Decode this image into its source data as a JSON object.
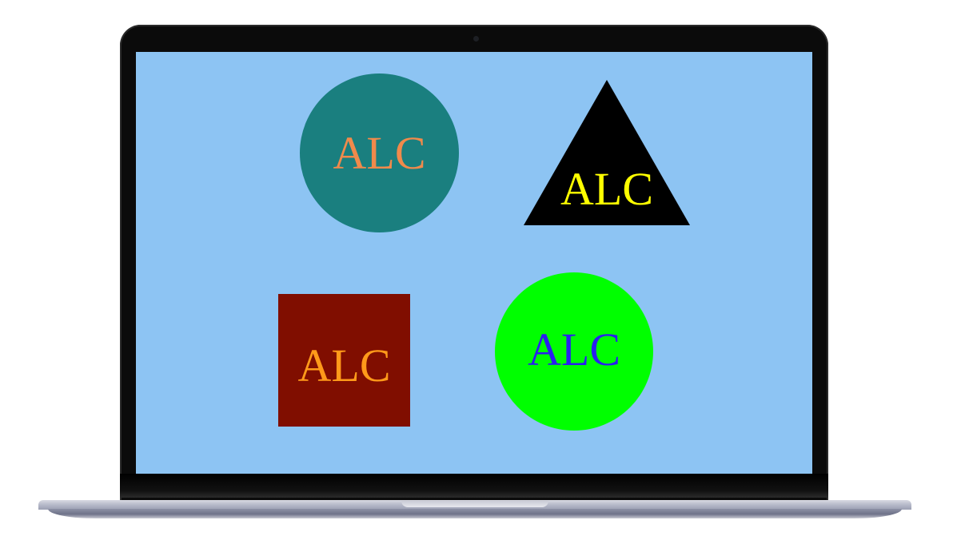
{
  "screen": {
    "background": "#8dc4f3",
    "shapes": {
      "teal_circle": {
        "label": "ALC",
        "fill": "#1a7f7f",
        "text_color": "#f08a4b",
        "shape": "circle"
      },
      "black_triangle": {
        "label": "ALC",
        "fill": "#000000",
        "text_color": "#ffff00",
        "shape": "triangle"
      },
      "maroon_square": {
        "label": "ALC",
        "fill": "#800e00",
        "text_color": "#ff9a1a",
        "shape": "square"
      },
      "green_circle": {
        "label": "ALC",
        "fill": "#00ff00",
        "text_color": "#2a1ef0",
        "shape": "circle"
      }
    }
  },
  "device": {
    "type": "laptop",
    "bezel_color": "#0b0b0b",
    "base_color": "#b9bccb"
  }
}
